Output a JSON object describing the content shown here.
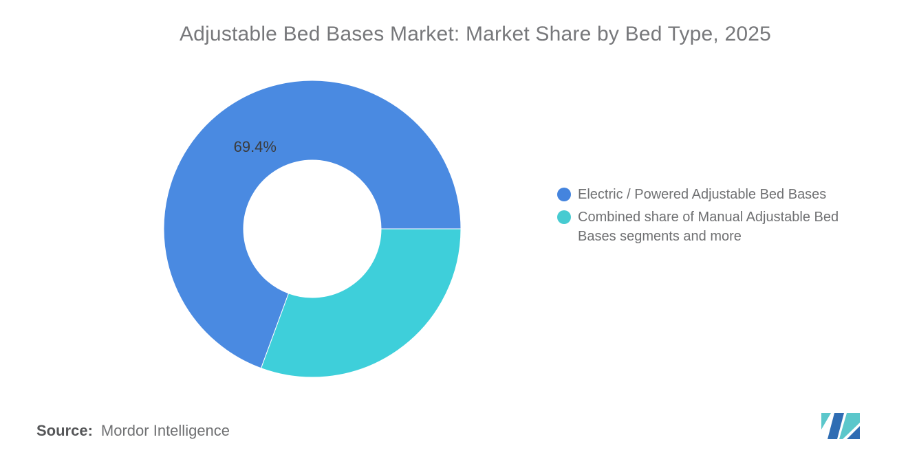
{
  "title": "Adjustable Bed Bases Market: Market Share by Bed Type, 2025",
  "chart_data": {
    "type": "pie",
    "subtype": "donut",
    "title": "Adjustable Bed Bases Market: Market Share by Bed Type, 2025",
    "labels": [
      "Electric / Powered Adjustable Bed Bases",
      "Combined share of Manual Adjustable Bed Bases segments and more"
    ],
    "values": [
      69.4,
      30.6
    ],
    "unit": "%",
    "colors": [
      "#4A8AE1",
      "#3ECFDA"
    ],
    "data_labels": [
      "69.4%",
      ""
    ],
    "data_label_color": "#3b3b3b",
    "donut_hole_ratio": 0.463,
    "legend_position": "right",
    "orientation_note": "first slice ends at 3 o'clock, slices run clockwise"
  },
  "legend": {
    "items": [
      {
        "label": "Electric / Powered Adjustable Bed Bases",
        "color": "#4484DE"
      },
      {
        "label": "Combined share of Manual Adjustable Bed Bases segments and more",
        "color": "#46CBD1"
      }
    ]
  },
  "source": {
    "label": "Source:",
    "value": "Mordor Intelligence"
  },
  "logo": {
    "name": "mordor-intelligence-logo",
    "colors": {
      "teal": "#5BC7CB",
      "blue": "#2F6DB3"
    }
  }
}
